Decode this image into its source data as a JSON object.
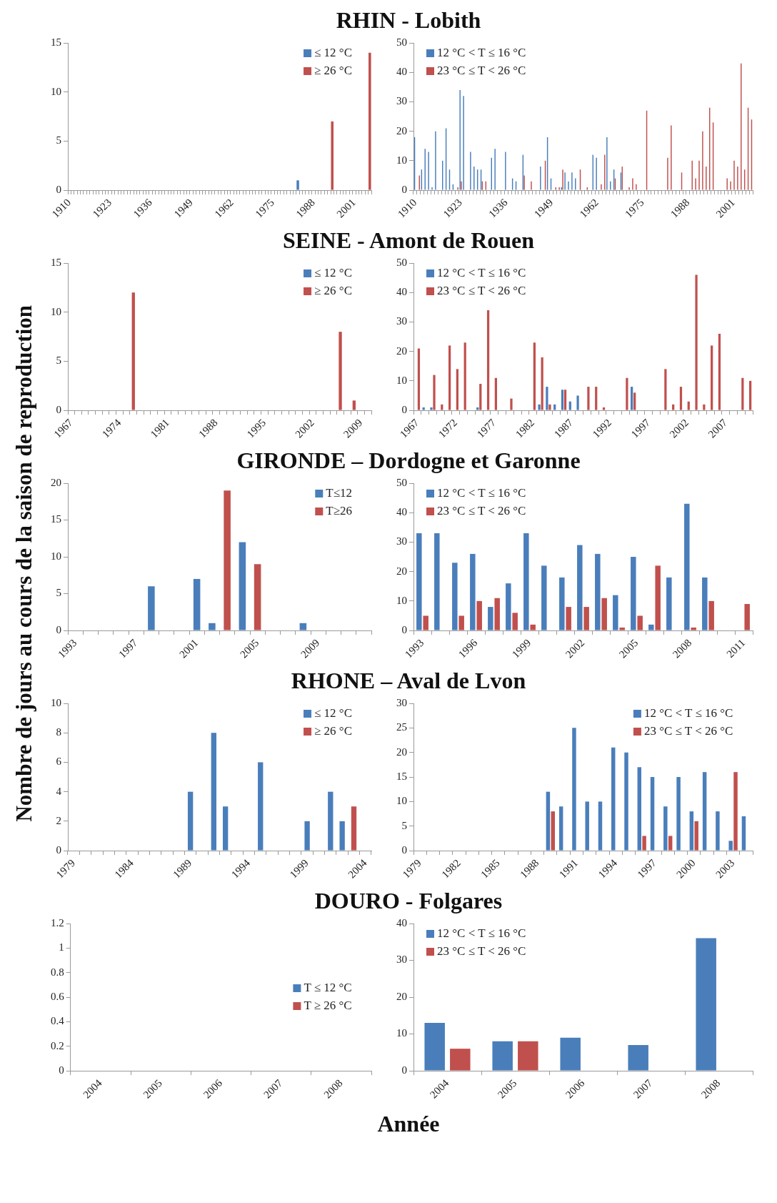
{
  "chart_data": [
    {
      "type": "bar",
      "title": "RHIN - Lobith",
      "ylabel": "Nombre de jours au cours de la saison de reproduction",
      "categories": [
        "1910",
        null,
        null,
        null,
        null,
        null,
        null,
        null,
        null,
        null,
        null,
        null,
        null,
        "1923",
        null,
        null,
        null,
        null,
        null,
        null,
        null,
        null,
        null,
        null,
        null,
        null,
        "1936",
        null,
        null,
        null,
        null,
        null,
        null,
        null,
        null,
        null,
        null,
        null,
        null,
        "1949",
        null,
        null,
        null,
        null,
        null,
        null,
        null,
        null,
        null,
        null,
        null,
        null,
        "1962",
        null,
        null,
        null,
        null,
        null,
        null,
        null,
        null,
        null,
        null,
        null,
        null,
        "1975",
        null,
        null,
        null,
        null,
        null,
        null,
        null,
        null,
        null,
        null,
        null,
        null,
        "1988",
        null,
        null,
        null,
        null,
        null,
        null,
        null,
        null,
        null,
        null,
        null,
        null,
        "2001",
        null,
        null,
        null,
        null,
        null
      ],
      "ylim": [
        0,
        15
      ],
      "yticks": [
        0,
        5,
        10,
        15
      ],
      "legend": "top right",
      "series": [
        {
          "name": "≤ 12 °C",
          "color": "#4a7ebb",
          "values": [
            0,
            0,
            0,
            0,
            0,
            0,
            0,
            0,
            0,
            0,
            0,
            0,
            0,
            0,
            0,
            0,
            0,
            0,
            0,
            0,
            0,
            0,
            0,
            0,
            0,
            0,
            0,
            0,
            0,
            0,
            0,
            0,
            0,
            0,
            0,
            0,
            0,
            0,
            0,
            0,
            0,
            0,
            0,
            0,
            0,
            0,
            0,
            0,
            0,
            0,
            0,
            0,
            0,
            0,
            0,
            0,
            0,
            0,
            0,
            0,
            0,
            0,
            0,
            0,
            0,
            0,
            0,
            0,
            0,
            0,
            0,
            0,
            0,
            1,
            0,
            0,
            0,
            0,
            0,
            0,
            0,
            0,
            0,
            0,
            0,
            0,
            0,
            0,
            0,
            0,
            0,
            0,
            0,
            0,
            0,
            0,
            0
          ]
        },
        {
          "name": "≥ 26 °C",
          "color": "#c0504d",
          "values": [
            0,
            0,
            0,
            0,
            0,
            0,
            0,
            0,
            0,
            0,
            0,
            0,
            0,
            0,
            0,
            0,
            0,
            0,
            0,
            0,
            0,
            0,
            0,
            0,
            0,
            0,
            0,
            0,
            0,
            0,
            0,
            0,
            0,
            0,
            0,
            0,
            0,
            0,
            0,
            0,
            0,
            0,
            0,
            0,
            0,
            0,
            0,
            0,
            0,
            0,
            0,
            0,
            0,
            0,
            0,
            0,
            0,
            0,
            0,
            0,
            0,
            0,
            0,
            0,
            0,
            0,
            0,
            0,
            0,
            0,
            0,
            0,
            0,
            0,
            0,
            0,
            0,
            0,
            0,
            0,
            0,
            0,
            0,
            0,
            7,
            0,
            0,
            0,
            0,
            0,
            0,
            0,
            0,
            0,
            0,
            0,
            14
          ]
        }
      ]
    },
    {
      "type": "bar",
      "categories": [
        "1910",
        null,
        null,
        null,
        null,
        null,
        null,
        null,
        null,
        null,
        null,
        null,
        null,
        "1923",
        null,
        null,
        null,
        null,
        null,
        null,
        null,
        null,
        null,
        null,
        null,
        null,
        "1936",
        null,
        null,
        null,
        null,
        null,
        null,
        null,
        null,
        null,
        null,
        null,
        null,
        "1949",
        null,
        null,
        null,
        null,
        null,
        null,
        null,
        null,
        null,
        null,
        null,
        null,
        "1962",
        null,
        null,
        null,
        null,
        null,
        null,
        null,
        null,
        null,
        null,
        null,
        null,
        "1975",
        null,
        null,
        null,
        null,
        null,
        null,
        null,
        null,
        null,
        null,
        null,
        null,
        "1988",
        null,
        null,
        null,
        null,
        null,
        null,
        null,
        null,
        null,
        null,
        null,
        null,
        "2001",
        null,
        null,
        null,
        null,
        null
      ],
      "ylim": [
        0,
        50
      ],
      "yticks": [
        0,
        10,
        20,
        30,
        40,
        50
      ],
      "legend": "top left",
      "series": [
        {
          "name": "12 °C < T ≤ 16 °C",
          "color": "#4a7ebb",
          "values": [
            18,
            0,
            7,
            14,
            13,
            1,
            20,
            0,
            10,
            21,
            7,
            2,
            0,
            34,
            32,
            0,
            13,
            8,
            7,
            7,
            0,
            0,
            11,
            14,
            0,
            0,
            13,
            0,
            4,
            3,
            0,
            12,
            0,
            0,
            0,
            0,
            8,
            0,
            18,
            4,
            0,
            0,
            1,
            6,
            3,
            6,
            4,
            0,
            0,
            0,
            0,
            12,
            11,
            0,
            0,
            18,
            3,
            7,
            0,
            6,
            0,
            0,
            0,
            0,
            0,
            0,
            0,
            0,
            0,
            0,
            0,
            0,
            0,
            0,
            0,
            0,
            0,
            0,
            0,
            0,
            0,
            0,
            0,
            0,
            0,
            0,
            0,
            0,
            0,
            0,
            0,
            0,
            0,
            0,
            0,
            0,
            0
          ]
        },
        {
          "name": "23 °C ≤ T < 26 °C",
          "color": "#c0504d",
          "values": [
            0,
            5,
            0,
            0,
            0,
            0,
            0,
            0,
            0,
            0,
            0,
            0,
            1,
            3,
            0,
            0,
            0,
            0,
            0,
            3,
            3,
            0,
            0,
            0,
            0,
            0,
            0,
            0,
            0,
            0,
            0,
            5,
            0,
            3,
            0,
            0,
            0,
            10,
            0,
            0,
            1,
            1,
            7,
            0,
            0,
            0,
            0,
            7,
            0,
            1,
            0,
            0,
            0,
            2,
            12,
            0,
            0,
            4,
            0,
            8,
            0,
            1,
            4,
            2,
            0,
            0,
            27,
            0,
            0,
            0,
            0,
            0,
            11,
            22,
            0,
            0,
            6,
            0,
            0,
            10,
            4,
            10,
            20,
            8,
            28,
            23,
            0,
            0,
            0,
            4,
            3,
            10,
            8,
            43,
            7,
            28,
            24
          ]
        }
      ]
    },
    {
      "type": "bar",
      "title": "SEINE -  Amont de Rouen",
      "categories": [
        "1967",
        null,
        null,
        null,
        null,
        null,
        null,
        "1974",
        null,
        null,
        null,
        null,
        null,
        null,
        "1981",
        null,
        null,
        null,
        null,
        null,
        null,
        "1988",
        null,
        null,
        null,
        null,
        null,
        null,
        "1995",
        null,
        null,
        null,
        null,
        null,
        null,
        "2002",
        null,
        null,
        null,
        null,
        null,
        null,
        "2009",
        null
      ],
      "ylim": [
        0,
        15
      ],
      "yticks": [
        0,
        5,
        10,
        15
      ],
      "legend": "top right",
      "series": [
        {
          "name": "≤ 12 °C",
          "color": "#4a7ebb",
          "values": [
            0,
            0,
            0,
            0,
            0,
            0,
            0,
            0,
            0,
            0,
            0,
            0,
            0,
            0,
            0,
            0,
            0,
            0,
            0,
            0,
            0,
            0,
            0,
            0,
            0,
            0,
            0,
            0,
            0,
            0,
            0,
            0,
            0,
            0,
            0,
            0,
            0,
            0,
            0,
            0,
            0,
            0,
            0,
            0
          ]
        },
        {
          "name": "≥ 26 °C",
          "color": "#c0504d",
          "values": [
            0,
            0,
            0,
            0,
            0,
            0,
            0,
            0,
            0,
            12,
            0,
            0,
            0,
            0,
            0,
            0,
            0,
            0,
            0,
            0,
            0,
            0,
            0,
            0,
            0,
            0,
            0,
            0,
            0,
            0,
            0,
            0,
            0,
            0,
            0,
            0,
            0,
            0,
            0,
            8,
            0,
            1,
            0,
            0
          ]
        }
      ]
    },
    {
      "type": "bar",
      "categories": [
        "1967",
        null,
        null,
        null,
        null,
        "1972",
        null,
        null,
        null,
        null,
        "1977",
        null,
        null,
        null,
        null,
        "1982",
        null,
        null,
        null,
        null,
        "1987",
        null,
        null,
        null,
        null,
        "1992",
        null,
        null,
        null,
        null,
        "1997",
        null,
        null,
        null,
        null,
        "2002",
        null,
        null,
        null,
        null,
        "2007",
        null,
        null,
        null
      ],
      "ylim": [
        0,
        50
      ],
      "yticks": [
        0,
        10,
        20,
        30,
        40,
        50
      ],
      "legend": "top left",
      "series": [
        {
          "name": "12 °C < T ≤ 16 °C",
          "color": "#4a7ebb",
          "values": [
            0,
            1,
            1,
            0,
            0,
            0,
            0,
            0,
            1,
            0,
            0,
            0,
            0,
            0,
            0,
            0,
            2,
            8,
            2,
            7,
            3,
            5,
            0,
            0,
            0,
            0,
            0,
            0,
            8,
            0,
            0,
            0,
            0,
            0,
            0,
            0,
            0,
            0,
            0,
            0,
            0,
            0,
            0,
            0
          ]
        },
        {
          "name": "23 °C ≤ T < 26 °C",
          "color": "#c0504d",
          "values": [
            21,
            0,
            12,
            2,
            22,
            14,
            23,
            0,
            9,
            34,
            11,
            0,
            4,
            0,
            0,
            23,
            18,
            2,
            0,
            7,
            0,
            0,
            8,
            8,
            1,
            0,
            0,
            11,
            6,
            0,
            0,
            0,
            14,
            2,
            8,
            3,
            46,
            2,
            22,
            26,
            0,
            0,
            11,
            10
          ]
        }
      ]
    },
    {
      "type": "bar",
      "title": "GIRONDE – Dordogne et Garonne",
      "categories": [
        "1993",
        null,
        null,
        null,
        "1997",
        null,
        null,
        null,
        "2001",
        null,
        null,
        null,
        "2005",
        null,
        null,
        null,
        "2009",
        null,
        null,
        null
      ],
      "ylim": [
        0,
        20
      ],
      "yticks": [
        0,
        5,
        10,
        15,
        20
      ],
      "legend": "top right",
      "series": [
        {
          "name": "T≤12",
          "color": "#4a7ebb",
          "values": [
            0,
            0,
            0,
            0,
            0,
            6,
            0,
            0,
            7,
            1,
            0,
            12,
            0,
            0,
            0,
            1,
            0,
            0,
            0,
            0
          ]
        },
        {
          "name": "T≥26",
          "color": "#c0504d",
          "values": [
            0,
            0,
            0,
            0,
            0,
            0,
            0,
            0,
            0,
            0,
            19,
            0,
            9,
            0,
            0,
            0,
            0,
            0,
            0,
            0
          ]
        }
      ]
    },
    {
      "type": "bar",
      "categories": [
        "1993",
        null,
        null,
        "1996",
        null,
        null,
        "1999",
        null,
        null,
        "2002",
        null,
        null,
        "2005",
        null,
        null,
        "2008",
        null,
        null,
        "2011"
      ],
      "ylim": [
        0,
        50
      ],
      "yticks": [
        0,
        10,
        20,
        30,
        40,
        50
      ],
      "legend": "top left",
      "series": [
        {
          "name": "12 °C < T ≤ 16 °C",
          "color": "#4a7ebb",
          "values": [
            33,
            33,
            23,
            26,
            8,
            16,
            33,
            22,
            18,
            29,
            26,
            12,
            25,
            2,
            18,
            43,
            18,
            0,
            0
          ]
        },
        {
          "name": "23 °C ≤ T < 26 °C",
          "color": "#c0504d",
          "values": [
            5,
            0,
            5,
            10,
            11,
            6,
            2,
            0,
            8,
            8,
            11,
            1,
            5,
            22,
            0,
            1,
            10,
            0,
            9
          ]
        }
      ]
    },
    {
      "type": "bar",
      "title": "RHONE – Aval de Lvon",
      "categories": [
        "1979",
        null,
        null,
        null,
        null,
        "1984",
        null,
        null,
        null,
        null,
        "1989",
        null,
        null,
        null,
        null,
        "1994",
        null,
        null,
        null,
        null,
        "1999",
        null,
        null,
        null,
        null,
        "2004"
      ],
      "ylim": [
        0,
        10
      ],
      "yticks": [
        0,
        2,
        4,
        6,
        8,
        10
      ],
      "legend": "top right",
      "series": [
        {
          "name": "≤ 12 °C",
          "color": "#4a7ebb",
          "values": [
            0,
            0,
            0,
            0,
            0,
            0,
            0,
            0,
            0,
            0,
            4,
            0,
            8,
            3,
            0,
            0,
            6,
            0,
            0,
            0,
            2,
            0,
            4,
            2,
            0,
            0
          ]
        },
        {
          "name": "≥ 26 °C",
          "color": "#c0504d",
          "values": [
            0,
            0,
            0,
            0,
            0,
            0,
            0,
            0,
            0,
            0,
            0,
            0,
            0,
            0,
            0,
            0,
            0,
            0,
            0,
            0,
            0,
            0,
            0,
            0,
            3,
            0
          ]
        }
      ]
    },
    {
      "type": "bar",
      "categories": [
        "1979",
        null,
        null,
        "1982",
        null,
        null,
        "1985",
        null,
        null,
        "1988",
        null,
        null,
        "1991",
        null,
        null,
        "1994",
        null,
        null,
        "1997",
        null,
        null,
        "2000",
        null,
        null,
        "2003",
        null
      ],
      "ylim": [
        0,
        30
      ],
      "yticks": [
        0,
        5,
        10,
        15,
        20,
        25,
        30
      ],
      "legend": "top right",
      "series": [
        {
          "name": "12 °C < T ≤ 16 °C",
          "color": "#4a7ebb",
          "values": [
            0,
            0,
            0,
            0,
            0,
            0,
            0,
            0,
            0,
            0,
            12,
            9,
            25,
            10,
            10,
            21,
            20,
            17,
            15,
            9,
            15,
            8,
            16,
            8,
            2,
            7
          ]
        },
        {
          "name": "23 °C ≤ T < 26 °C",
          "color": "#c0504d",
          "values": [
            0,
            0,
            0,
            0,
            0,
            0,
            0,
            0,
            0,
            0,
            8,
            0,
            0,
            0,
            0,
            0,
            0,
            3,
            0,
            3,
            0,
            6,
            0,
            0,
            16,
            0
          ]
        }
      ]
    },
    {
      "type": "bar",
      "title": "DOURO - Folgares",
      "xlabel": "Année",
      "categories": [
        "2004",
        "2005",
        "2006",
        "2007",
        "2008"
      ],
      "ylim": [
        0,
        1.2
      ],
      "yticks": [
        0,
        0.2,
        0.4,
        0.6,
        0.8,
        1,
        1.2
      ],
      "legend": "right",
      "series": [
        {
          "name": "T ≤ 12 °C",
          "color": "#4a7ebb",
          "values": [
            0,
            0,
            0,
            0,
            0
          ]
        },
        {
          "name": "T ≥ 26 °C",
          "color": "#c0504d",
          "values": [
            0,
            0,
            0,
            0,
            0
          ]
        }
      ]
    },
    {
      "type": "bar",
      "categories": [
        "2004",
        "2005",
        "2006",
        "2007",
        "2008"
      ],
      "ylim": [
        0,
        40
      ],
      "yticks": [
        0,
        10,
        20,
        30,
        40
      ],
      "legend": "top left",
      "series": [
        {
          "name": "12 °C < T ≤ 16 °C",
          "color": "#4a7ebb",
          "values": [
            13,
            8,
            9,
            7,
            36
          ]
        },
        {
          "name": "23 °C ≤ T < 26 °C",
          "color": "#c0504d",
          "values": [
            6,
            8,
            0,
            0,
            0
          ]
        }
      ]
    }
  ]
}
